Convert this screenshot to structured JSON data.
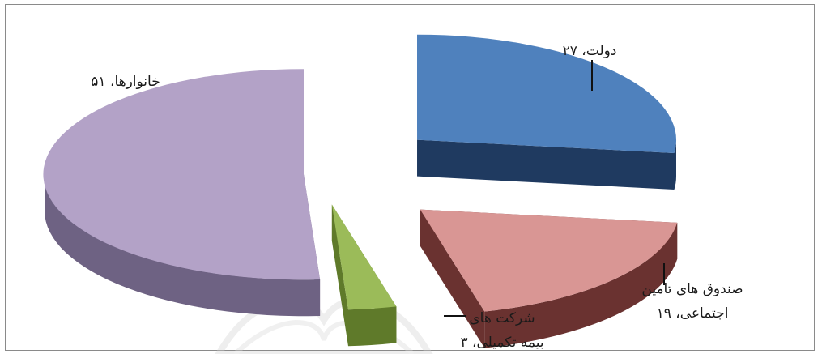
{
  "chart_data": {
    "type": "pie",
    "title": "",
    "style": "3d-exploded",
    "slices": [
      {
        "name": "دولت",
        "value": 27,
        "label_line1": "دولت، ۲۷",
        "label_line2": "",
        "color": "#4f81bd",
        "side_color": "#1f3a60"
      },
      {
        "name": "صندوق های تامین اجتماعی",
        "value": 19,
        "label_line1": "صندوق های تامین",
        "label_line2": "اجتماعی، ۱۹",
        "color": "#d99694",
        "side_color": "#6a3230"
      },
      {
        "name": "شرکت های بیمه تکمیلی",
        "value": 3,
        "label_line1": "شرکت های",
        "label_line2": "بیمه تکمیلی، ۳",
        "color": "#9bbb59",
        "side_color": "#5f7a2a"
      },
      {
        "name": "خانوارها",
        "value": 51,
        "label_line1": "خانوارها، ۵۱",
        "label_line2": "",
        "color": "#b3a2c7",
        "side_color": "#6e6283"
      }
    ],
    "legend": "none"
  }
}
